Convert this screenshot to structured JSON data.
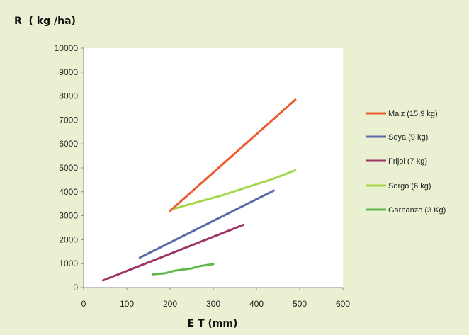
{
  "chart_data": {
    "type": "line",
    "title": "",
    "ylabel": "R  ( kg /ha)",
    "xlabel": "E T (mm)",
    "xlim": [
      0,
      600
    ],
    "ylim": [
      0,
      10000
    ],
    "xticks": [
      0,
      100,
      200,
      300,
      400,
      500,
      600
    ],
    "yticks": [
      0,
      1000,
      2000,
      3000,
      4000,
      5000,
      6000,
      7000,
      8000,
      9000,
      10000
    ],
    "grid": false,
    "legend_position": "right",
    "series": [
      {
        "name": "Maiz (15,9 kg)",
        "color": "#ee5a2f",
        "x": [
          200,
          490
        ],
        "y": [
          3200,
          7850
        ]
      },
      {
        "name": "Soya (9 kg)",
        "color": "#5a6aa8",
        "x": [
          130,
          440
        ],
        "y": [
          1250,
          4050
        ]
      },
      {
        "name": "Frijol (7 kg)",
        "color": "#9c3467",
        "x": [
          45,
          370
        ],
        "y": [
          300,
          2620
        ]
      },
      {
        "name": "Sorgo (6 kg)",
        "color": "#a6d64b",
        "x": [
          210,
          260,
          320,
          380,
          440,
          490
        ],
        "y": [
          3300,
          3550,
          3850,
          4200,
          4550,
          4900
        ]
      },
      {
        "name": "Garbanzo (3 Kg)",
        "color": "#5eb94a",
        "x": [
          160,
          190,
          210,
          230,
          250,
          270,
          300
        ],
        "y": [
          550,
          600,
          700,
          750,
          800,
          900,
          980
        ]
      }
    ]
  }
}
